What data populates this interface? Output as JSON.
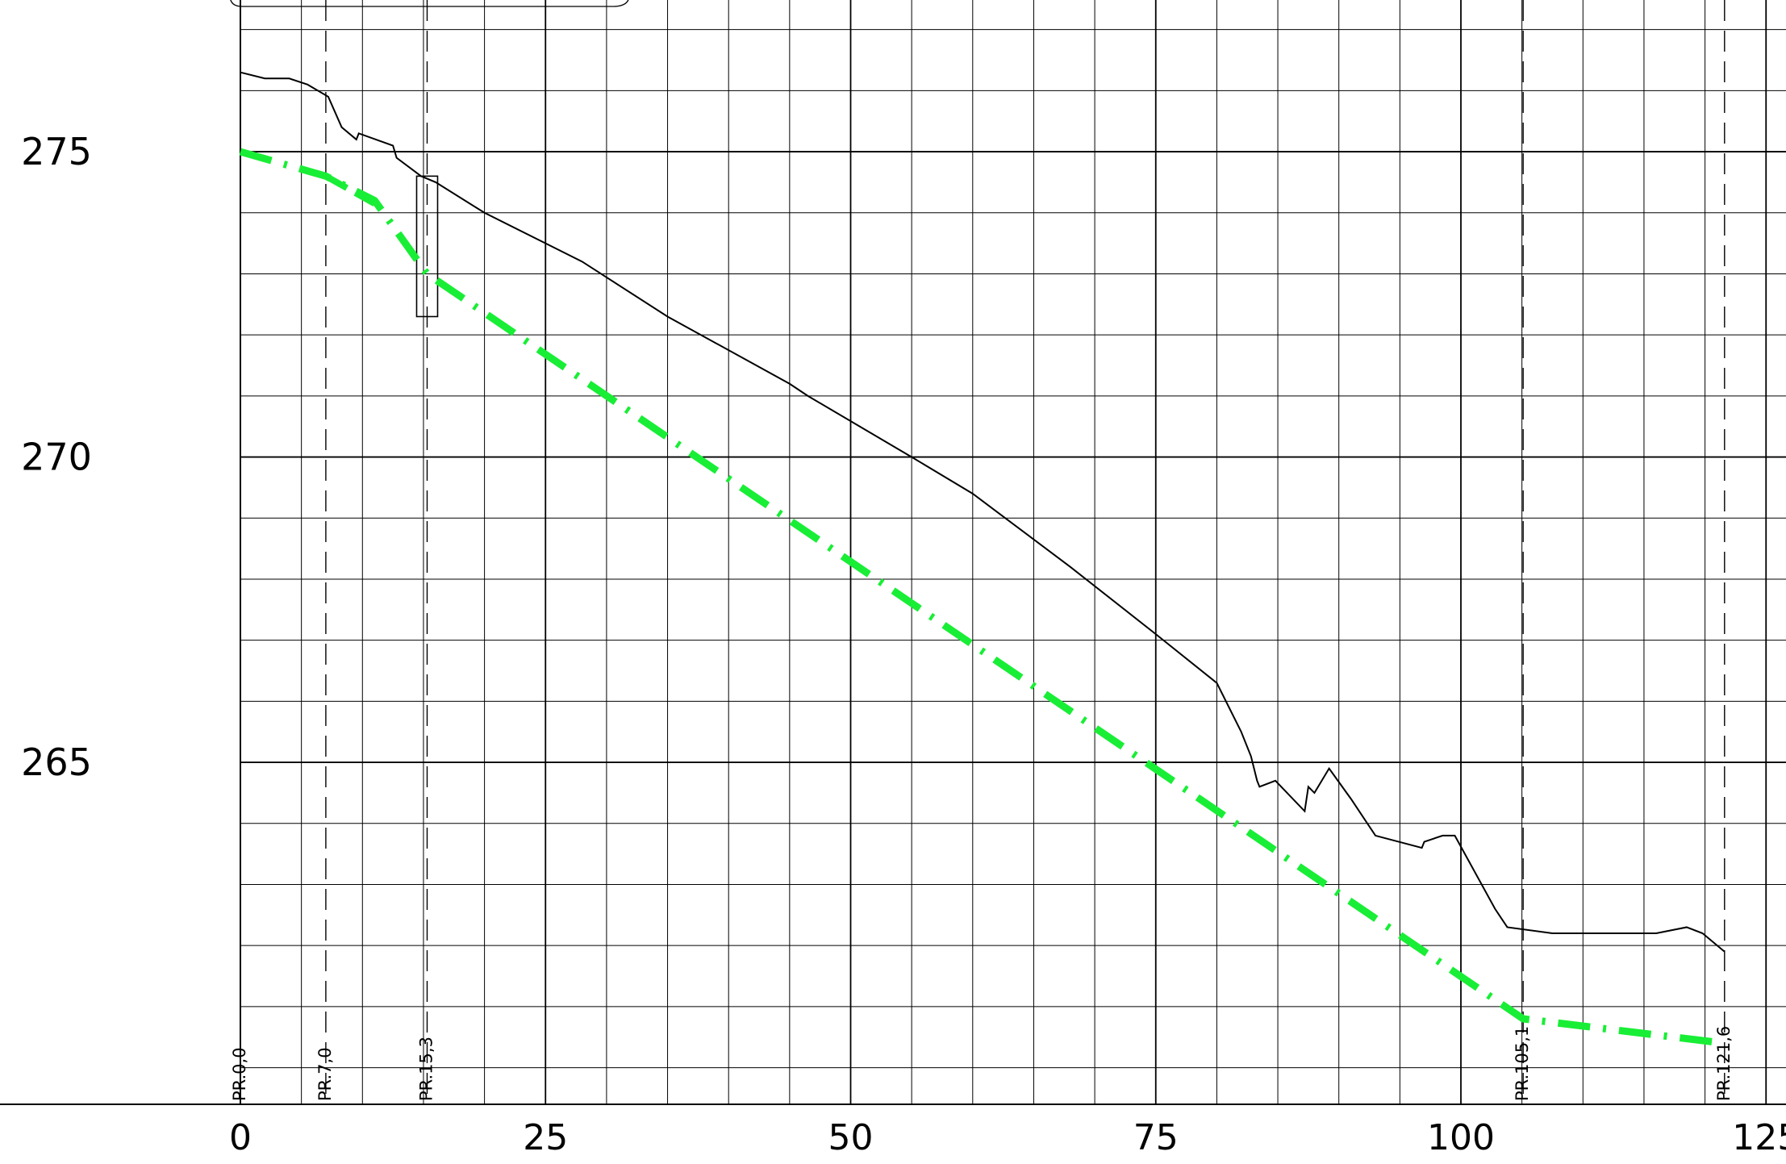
{
  "chart_data": {
    "type": "line",
    "title": "",
    "xlabel": "",
    "ylabel": "",
    "xlim": [
      0,
      126.5
    ],
    "ylim": [
      259.4,
      278.2
    ],
    "grid": true,
    "grid_minor": {
      "x": 5,
      "y": 1
    },
    "x_ticks": [
      0,
      25,
      50,
      75,
      100,
      125
    ],
    "y_ticks": [
      265,
      270,
      275
    ],
    "x_tick_labels": [
      "0",
      "25",
      "50",
      "75",
      "100",
      "125"
    ],
    "y_tick_labels": [
      "265",
      "270",
      "275"
    ],
    "stations": [
      {
        "x": 0.0,
        "label": "PR.0,0",
        "dashed": false
      },
      {
        "x": 7.0,
        "label": "PR.7,0",
        "dashed": true
      },
      {
        "x": 15.3,
        "label": "PR.15,3",
        "dashed": true
      },
      {
        "x": 105.1,
        "label": "PR.105,1",
        "dashed": true
      },
      {
        "x": 121.6,
        "label": "PR.121,6",
        "dashed": true
      }
    ],
    "series": [
      {
        "kind": "terrain",
        "color": "#000000",
        "points": [
          [
            0,
            276.3
          ],
          [
            2,
            276.2
          ],
          [
            4,
            276.2
          ],
          [
            5.5,
            276.1
          ],
          [
            7.2,
            275.9
          ],
          [
            8.3,
            275.4
          ],
          [
            9.5,
            275.2
          ],
          [
            9.7,
            275.3
          ],
          [
            12.5,
            275.1
          ],
          [
            12.8,
            274.9
          ],
          [
            14.8,
            274.6
          ],
          [
            16.0,
            274.5
          ],
          [
            20,
            274.0
          ],
          [
            25,
            273.5
          ],
          [
            28,
            273.2
          ],
          [
            35,
            272.3
          ],
          [
            45,
            271.2
          ],
          [
            46.5,
            271.0
          ],
          [
            55,
            270.0
          ],
          [
            60,
            269.4
          ],
          [
            68,
            268.2
          ],
          [
            75,
            267.1
          ],
          [
            80,
            266.3
          ],
          [
            82,
            265.5
          ],
          [
            82.8,
            265.1
          ],
          [
            83.3,
            264.7
          ],
          [
            83.5,
            264.6
          ],
          [
            84.8,
            264.7
          ],
          [
            87.2,
            264.2
          ],
          [
            87.5,
            264.6
          ],
          [
            88.0,
            264.5
          ],
          [
            89.2,
            264.9
          ],
          [
            91.0,
            264.4
          ],
          [
            93.0,
            263.8
          ],
          [
            96.8,
            263.6
          ],
          [
            97.0,
            263.7
          ],
          [
            98.5,
            263.8
          ],
          [
            99.5,
            263.8
          ],
          [
            102.8,
            262.6
          ],
          [
            103.8,
            262.3
          ],
          [
            107.5,
            262.2
          ],
          [
            112,
            262.2
          ],
          [
            116,
            262.2
          ],
          [
            118.5,
            262.3
          ],
          [
            119.8,
            262.2
          ],
          [
            121.6,
            261.9
          ]
        ]
      },
      {
        "kind": "design",
        "color": "#18ee35",
        "points": [
          [
            0,
            275.0
          ],
          [
            7.0,
            274.6
          ],
          [
            11.0,
            274.2
          ],
          [
            15.3,
            273.0
          ],
          [
            105.1,
            260.8
          ],
          [
            121.6,
            260.4
          ]
        ]
      }
    ]
  }
}
